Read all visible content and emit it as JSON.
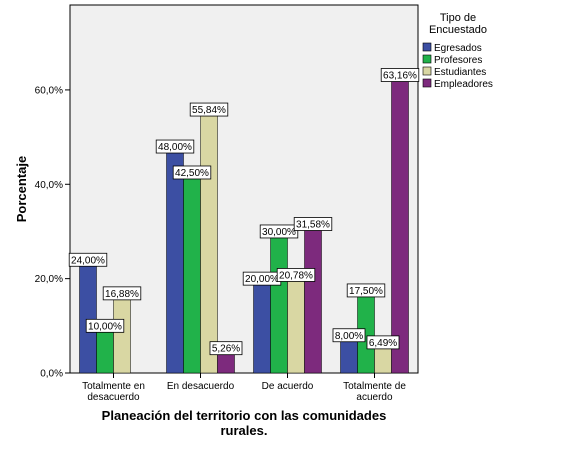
{
  "chart_data": {
    "type": "bar",
    "xlabel": [
      "Planeación del territorio con las comunidades",
      "rurales."
    ],
    "ylabel": "Porcentaje",
    "ylim": [
      0,
      78
    ],
    "yticks": [
      0,
      20,
      40,
      60
    ],
    "ytick_labels": [
      "0,0%",
      "20,0%",
      "40,0%",
      "60,0%"
    ],
    "grid": false,
    "legend_position": "right",
    "legend_title": [
      "Tipo de",
      "Encuestado"
    ],
    "categories": [
      [
        "Totalmente en",
        "desacuerdo"
      ],
      [
        "En desacuerdo"
      ],
      [
        "De acuerdo"
      ],
      [
        "Totalmente de",
        "acuerdo"
      ]
    ],
    "series": [
      {
        "name": "Egresados",
        "color": "#3c4fa3",
        "values": [
          24.0,
          48.0,
          20.0,
          8.0
        ],
        "labels": [
          "24,00%",
          "48,00%",
          "20,00%",
          "8,00%"
        ]
      },
      {
        "name": "Profesores",
        "color": "#21b24a",
        "values": [
          10.0,
          42.5,
          30.0,
          17.5
        ],
        "labels": [
          "10,00%",
          "42,50%",
          "30,00%",
          "17,50%"
        ]
      },
      {
        "name": "Estudiantes",
        "color": "#d9d7a3",
        "values": [
          16.88,
          55.84,
          20.78,
          6.49
        ],
        "labels": [
          "16,88%",
          "55,84%",
          "20,78%",
          "6,49%"
        ]
      },
      {
        "name": "Empleadores",
        "color": "#7d2a7d",
        "values": [
          null,
          5.26,
          31.58,
          63.16
        ],
        "labels": [
          null,
          "5,26%",
          "31,58%",
          "63,16%"
        ]
      }
    ]
  }
}
